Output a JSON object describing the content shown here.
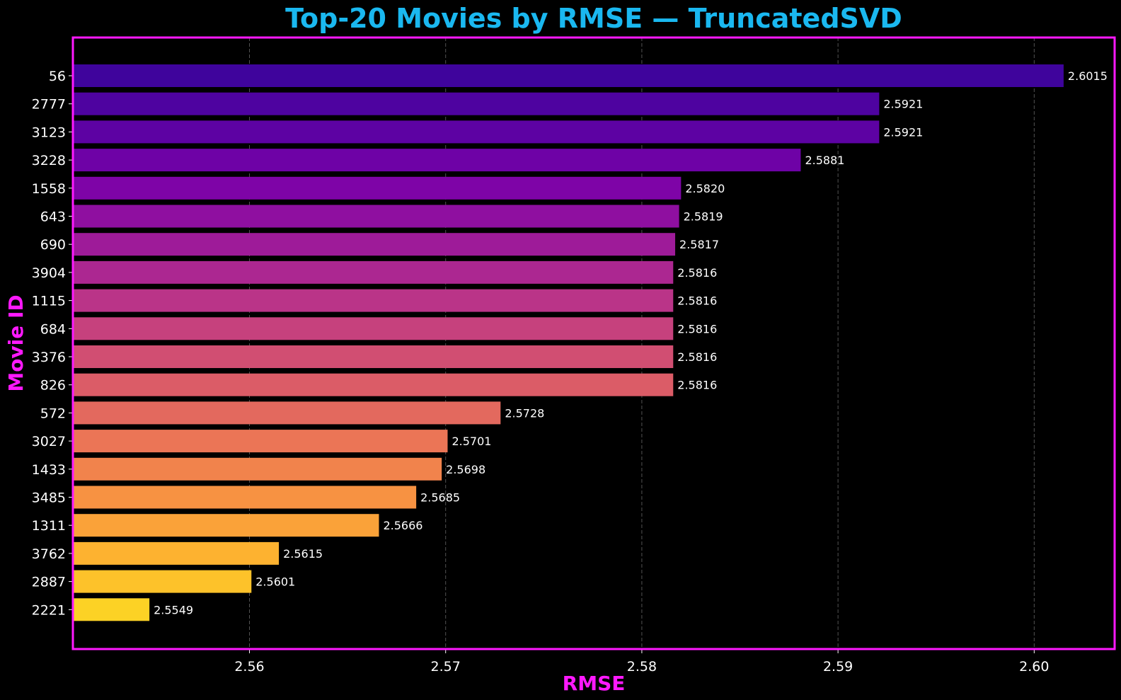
{
  "colors": {
    "background": "#000000",
    "title": "#1ab8f0",
    "axis_label": "#ff19ff",
    "frame": "#ff19ff",
    "grid": "#8a8a8a",
    "text": "#ffffff",
    "bar_palette": [
      "#3f049c",
      "#5b02a3",
      "#7b02a8",
      "#9a179b",
      "#b52f8c",
      "#cc4778",
      "#df6263",
      "#ed7953",
      "#f89540",
      "#fdb42f",
      "#fcd225"
    ]
  },
  "chart_data": {
    "type": "bar",
    "orientation": "horizontal",
    "title": "Top-20 Movies by RMSE — TruncatedSVD",
    "xlabel": "RMSE",
    "ylabel": "Movie ID",
    "xlim": [
      2.551,
      2.6041
    ],
    "xticks": [
      2.56,
      2.57,
      2.58,
      2.59,
      2.6
    ],
    "xtick_labels": [
      "2.56",
      "2.57",
      "2.58",
      "2.59",
      "2.60"
    ],
    "grid": "x-dashed",
    "colormap": "plasma",
    "categories": [
      "56",
      "2777",
      "3123",
      "3228",
      "1558",
      "643",
      "690",
      "3904",
      "1115",
      "684",
      "3376",
      "826",
      "572",
      "3027",
      "1433",
      "3485",
      "1311",
      "3762",
      "2887",
      "2221"
    ],
    "values": [
      2.6015,
      2.5921,
      2.5921,
      2.5881,
      2.582,
      2.5819,
      2.5817,
      2.5816,
      2.5816,
      2.5816,
      2.5816,
      2.5816,
      2.5728,
      2.5701,
      2.5698,
      2.5685,
      2.5666,
      2.5615,
      2.5601,
      2.5549
    ],
    "value_labels": [
      "2.6015",
      "2.5921",
      "2.5921",
      "2.5881",
      "2.5820",
      "2.5819",
      "2.5817",
      "2.5816",
      "2.5816",
      "2.5816",
      "2.5816",
      "2.5816",
      "2.5728",
      "2.5701",
      "2.5698",
      "2.5685",
      "2.5666",
      "2.5615",
      "2.5601",
      "2.5549"
    ]
  }
}
